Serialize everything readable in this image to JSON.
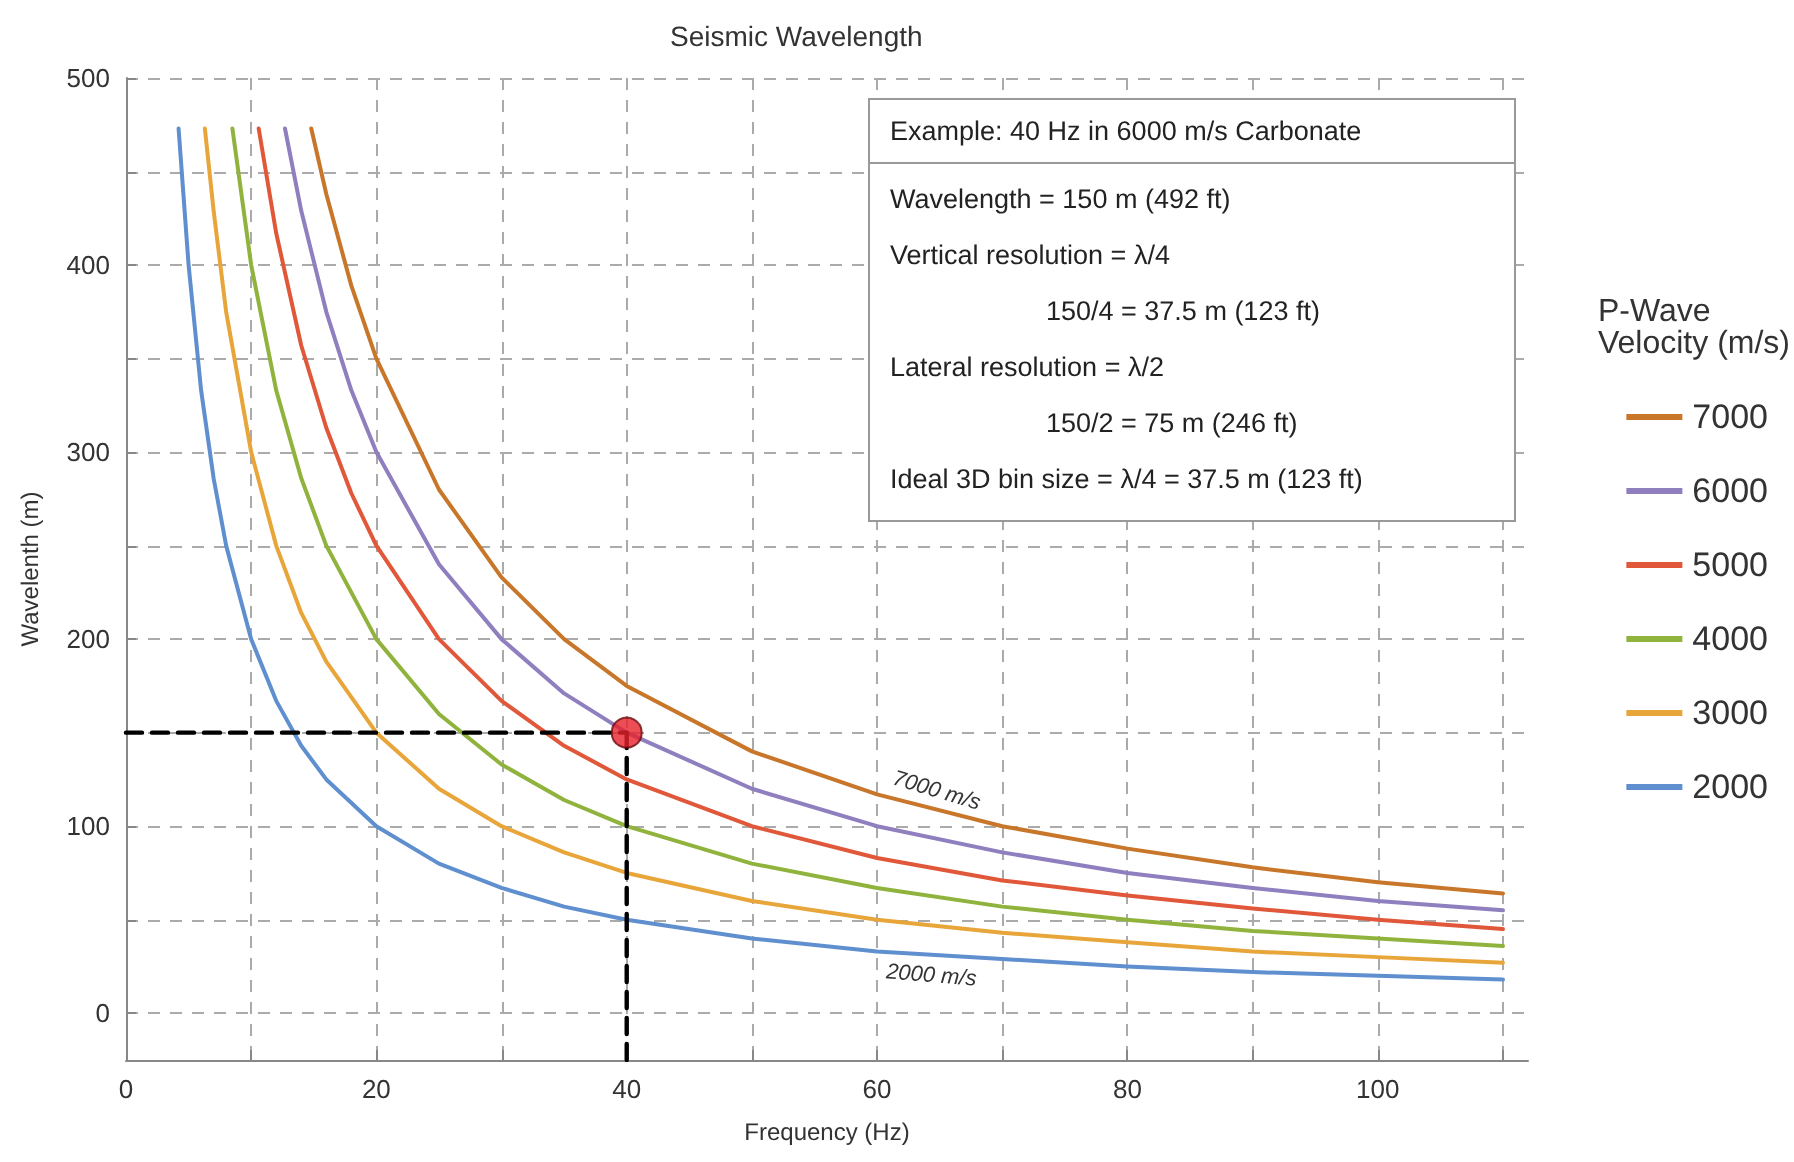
{
  "chart_data": {
    "type": "line",
    "title": "Seismic Wavelength",
    "xlabel": "Frequency (Hz)",
    "ylabel": "Wavelenth (m)",
    "legend_title": "P-Wave\nVelocity (m/s)",
    "xlim": [
      0,
      112
    ],
    "xticks": [
      0,
      {
        "value": 10,
        "label": null
      },
      20,
      {
        "value": 30,
        "label": null
      },
      40,
      {
        "value": 50,
        "label": null
      },
      60,
      {
        "value": 70,
        "label": null
      },
      80,
      {
        "value": 90,
        "label": null
      },
      100,
      {
        "value": 110,
        "label": null
      }
    ],
    "ylim": [
      -25,
      500
    ],
    "yticks": [
      0,
      {
        "value": 50,
        "label": null
      },
      100,
      {
        "value": 150,
        "label": null
      },
      200,
      {
        "value": 250,
        "label": null
      },
      300,
      {
        "value": 350,
        "label": null
      },
      400,
      {
        "value": 450,
        "label": null
      },
      500
    ],
    "grid": true,
    "legend": "right",
    "marker": "none",
    "line_style": "solid",
    "series": [
      {
        "name": "7000",
        "color": "#c8772a",
        "x": [
          14.8,
          16,
          18,
          20,
          25,
          30,
          35,
          40,
          50,
          60,
          70,
          80,
          90,
          100,
          110
        ],
        "values": [
          473,
          438,
          389,
          350,
          280,
          233,
          200,
          175,
          140,
          117,
          100,
          88,
          78,
          70,
          64
        ]
      },
      {
        "name": "6000",
        "color": "#8f7fbf",
        "x": [
          12.7,
          14,
          16,
          18,
          20,
          25,
          30,
          35,
          40,
          50,
          60,
          70,
          80,
          90,
          100,
          110
        ],
        "values": [
          473,
          429,
          375,
          333,
          300,
          240,
          200,
          171,
          150,
          120,
          100,
          86,
          75,
          67,
          60,
          55
        ]
      },
      {
        "name": "5000",
        "color": "#e0573a",
        "x": [
          10.6,
          12,
          14,
          16,
          18,
          20,
          25,
          30,
          35,
          40,
          50,
          60,
          70,
          80,
          90,
          100,
          110
        ],
        "values": [
          473,
          417,
          357,
          313,
          278,
          250,
          200,
          167,
          143,
          125,
          100,
          83,
          71,
          63,
          56,
          50,
          45
        ]
      },
      {
        "name": "4000",
        "color": "#8fb33c",
        "x": [
          8.5,
          10,
          12,
          14,
          16,
          20,
          25,
          30,
          35,
          40,
          50,
          60,
          70,
          80,
          90,
          100,
          110
        ],
        "values": [
          473,
          400,
          333,
          286,
          250,
          200,
          160,
          133,
          114,
          100,
          80,
          67,
          57,
          50,
          44,
          40,
          36
        ]
      },
      {
        "name": "3000",
        "color": "#e8a53a",
        "x": [
          6.3,
          7,
          8,
          10,
          12,
          14,
          16,
          20,
          25,
          30,
          35,
          40,
          50,
          60,
          70,
          80,
          90,
          100,
          110
        ],
        "values": [
          473,
          429,
          375,
          300,
          250,
          214,
          188,
          150,
          120,
          100,
          86,
          75,
          60,
          50,
          43,
          38,
          33,
          30,
          27
        ]
      },
      {
        "name": "2000",
        "color": "#5f8fcf",
        "x": [
          4.2,
          5,
          6,
          7,
          8,
          10,
          12,
          14,
          16,
          20,
          25,
          30,
          35,
          40,
          50,
          60,
          70,
          80,
          90,
          100,
          110
        ],
        "values": [
          473,
          400,
          333,
          286,
          250,
          200,
          167,
          143,
          125,
          100,
          80,
          67,
          57,
          50,
          40,
          33,
          29,
          25,
          22,
          20,
          18
        ]
      },
      {
        "type": "line",
        "color": "#000000",
        "line_style": "dashed",
        "x": [
          0,
          40
        ],
        "values": [
          150,
          150
        ]
      },
      {
        "type": "line",
        "color": "#000000",
        "line_style": "dashed",
        "x": [
          40,
          40
        ],
        "values": [
          -25,
          150
        ]
      },
      {
        "type": "scatter",
        "color": "#e8202a",
        "marker": "circle",
        "x": [
          40
        ],
        "values": [
          150
        ]
      }
    ],
    "annotations": [
      "Example: 40 Hz in 6000 m/s Carbonate",
      "Wavelength = 150 m (492 ft)",
      "Vertical resolution = λ/4\n150/4 = 37.5 m (123 ft)",
      "Lateral resolution = λ/2\n150/2 = 75 m (246 ft)",
      "Ideal 3D bin size = λ/4 = 37.5 m (123 ft)",
      {
        "text": "7000 m/s",
        "x": 60,
        "y": 117
      },
      {
        "text": "2000 m/s",
        "x": 60,
        "y": 33
      }
    ]
  }
}
